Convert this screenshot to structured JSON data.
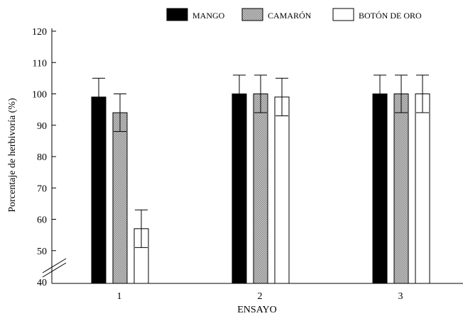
{
  "chart_data": {
    "type": "bar",
    "title": "",
    "xlabel": "ENSAYO",
    "ylabel": "Porcentaje de herbivoría (%)",
    "categories": [
      "1",
      "2",
      "3"
    ],
    "ylim": [
      40,
      120
    ],
    "yticks": [
      "40",
      "50",
      "60",
      "70",
      "80",
      "90",
      "100",
      "110",
      "120"
    ],
    "axis_break": true,
    "grid": false,
    "legend_position": "top",
    "series": [
      {
        "name": "MANGO",
        "color": "#000000",
        "pattern": "solid",
        "values": [
          99,
          100,
          100
        ],
        "errors": [
          6,
          6,
          6
        ]
      },
      {
        "name": "CAMARÓN",
        "color": "#999999",
        "pattern": "checker",
        "values": [
          94,
          100,
          100
        ],
        "errors": [
          6,
          6,
          6
        ]
      },
      {
        "name": "BOTÓN DE ORO",
        "color": "#ffffff",
        "pattern": "hollow",
        "values": [
          57,
          99,
          100
        ],
        "errors": [
          6,
          6,
          6
        ]
      }
    ]
  }
}
